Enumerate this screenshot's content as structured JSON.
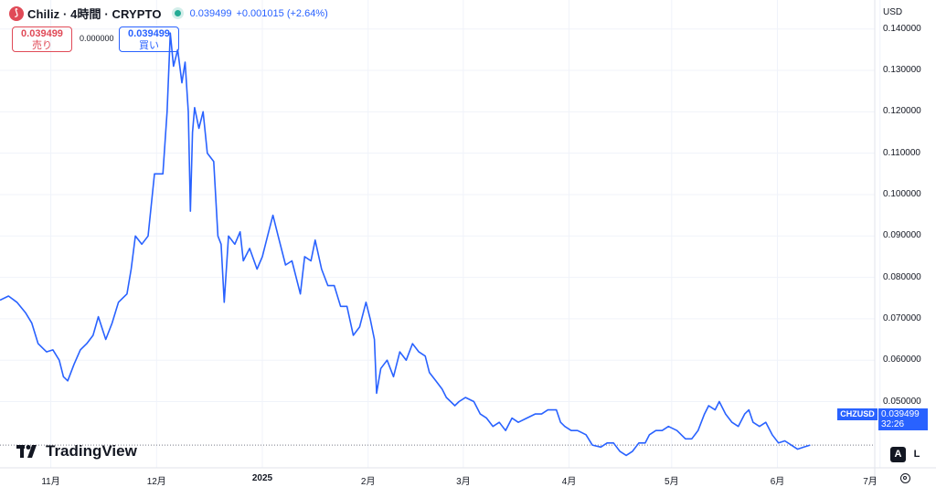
{
  "header": {
    "logo_glyph": "⟆",
    "title": "Chiliz · 4時間 · CRYPTO",
    "price": "0.039499",
    "change": "+0.001015 (+2.64%)"
  },
  "trade": {
    "sell_value": "0.039499",
    "sell_label": "売り",
    "spread": "0.000000",
    "buy_value": "0.039499",
    "buy_label": "買い"
  },
  "axis": {
    "currency": "USD",
    "auto_label": "A",
    "log_label": "L"
  },
  "price_tag": {
    "symbol": "CHZUSD",
    "value": "0.039499",
    "countdown": "32:26"
  },
  "brand": {
    "name": "TradingView"
  },
  "colors": {
    "line": "#2962ff",
    "sell": "#e04a57",
    "buy": "#2962ff",
    "grid": "#f0f3fa"
  },
  "chart_data": {
    "type": "line",
    "symbol": "CHZUSD",
    "title": "Chiliz · 4時間 · CRYPTO",
    "ylim": [
      0.034,
      0.147
    ],
    "xlim": [
      0,
      8.27
    ],
    "y_ticks": [
      0.14,
      0.13,
      0.12,
      0.11,
      0.1,
      0.09,
      0.08,
      0.07,
      0.06,
      0.05
    ],
    "y_tick_labels": [
      "0.140000",
      "0.130000",
      "0.120000",
      "0.110000",
      "0.100000",
      "0.090000",
      "0.080000",
      "0.070000",
      "0.060000",
      "0.050000"
    ],
    "x_ticks": [
      {
        "x": 0.48,
        "label": "11月",
        "bold": false
      },
      {
        "x": 1.48,
        "label": "12月",
        "bold": false
      },
      {
        "x": 2.48,
        "label": "2025",
        "bold": true
      },
      {
        "x": 3.48,
        "label": "2月",
        "bold": false
      },
      {
        "x": 4.38,
        "label": "3月",
        "bold": false
      },
      {
        "x": 5.38,
        "label": "4月",
        "bold": false
      },
      {
        "x": 6.35,
        "label": "5月",
        "bold": false
      },
      {
        "x": 7.35,
        "label": "6月",
        "bold": false
      },
      {
        "x": 8.32,
        "label": "7月",
        "bold": false
      }
    ],
    "grid": true,
    "last_price": 0.039499,
    "series": [
      {
        "name": "CHZUSD",
        "points": [
          [
            0.0,
            0.0745
          ],
          [
            0.08,
            0.0755
          ],
          [
            0.16,
            0.074
          ],
          [
            0.24,
            0.0715
          ],
          [
            0.3,
            0.069
          ],
          [
            0.36,
            0.064
          ],
          [
            0.44,
            0.062
          ],
          [
            0.5,
            0.0625
          ],
          [
            0.56,
            0.06
          ],
          [
            0.6,
            0.056
          ],
          [
            0.64,
            0.055
          ],
          [
            0.7,
            0.059
          ],
          [
            0.76,
            0.0625
          ],
          [
            0.82,
            0.064
          ],
          [
            0.88,
            0.066
          ],
          [
            0.93,
            0.0705
          ],
          [
            1.0,
            0.065
          ],
          [
            1.06,
            0.069
          ],
          [
            1.12,
            0.074
          ],
          [
            1.2,
            0.076
          ],
          [
            1.24,
            0.082
          ],
          [
            1.28,
            0.09
          ],
          [
            1.34,
            0.088
          ],
          [
            1.4,
            0.09
          ],
          [
            1.46,
            0.105
          ],
          [
            1.54,
            0.105
          ],
          [
            1.58,
            0.12
          ],
          [
            1.61,
            0.139
          ],
          [
            1.64,
            0.131
          ],
          [
            1.68,
            0.135
          ],
          [
            1.72,
            0.127
          ],
          [
            1.75,
            0.132
          ],
          [
            1.78,
            0.12
          ],
          [
            1.8,
            0.096
          ],
          [
            1.82,
            0.115
          ],
          [
            1.84,
            0.121
          ],
          [
            1.88,
            0.116
          ],
          [
            1.92,
            0.12
          ],
          [
            1.96,
            0.11
          ],
          [
            2.02,
            0.108
          ],
          [
            2.06,
            0.09
          ],
          [
            2.09,
            0.088
          ],
          [
            2.12,
            0.074
          ],
          [
            2.16,
            0.09
          ],
          [
            2.22,
            0.088
          ],
          [
            2.27,
            0.091
          ],
          [
            2.3,
            0.084
          ],
          [
            2.36,
            0.087
          ],
          [
            2.43,
            0.082
          ],
          [
            2.48,
            0.085
          ],
          [
            2.54,
            0.091
          ],
          [
            2.58,
            0.095
          ],
          [
            2.63,
            0.09
          ],
          [
            2.7,
            0.083
          ],
          [
            2.76,
            0.084
          ],
          [
            2.84,
            0.076
          ],
          [
            2.88,
            0.085
          ],
          [
            2.94,
            0.084
          ],
          [
            2.98,
            0.089
          ],
          [
            3.04,
            0.082
          ],
          [
            3.1,
            0.078
          ],
          [
            3.16,
            0.078
          ],
          [
            3.22,
            0.073
          ],
          [
            3.28,
            0.073
          ],
          [
            3.34,
            0.066
          ],
          [
            3.4,
            0.068
          ],
          [
            3.46,
            0.074
          ],
          [
            3.5,
            0.07
          ],
          [
            3.54,
            0.065
          ],
          [
            3.56,
            0.052
          ],
          [
            3.6,
            0.058
          ],
          [
            3.66,
            0.06
          ],
          [
            3.72,
            0.056
          ],
          [
            3.78,
            0.062
          ],
          [
            3.84,
            0.06
          ],
          [
            3.9,
            0.064
          ],
          [
            3.96,
            0.062
          ],
          [
            4.02,
            0.061
          ],
          [
            4.06,
            0.057
          ],
          [
            4.12,
            0.055
          ],
          [
            4.18,
            0.053
          ],
          [
            4.22,
            0.051
          ],
          [
            4.26,
            0.05
          ],
          [
            4.3,
            0.049
          ],
          [
            4.34,
            0.05
          ],
          [
            4.4,
            0.051
          ],
          [
            4.48,
            0.05
          ],
          [
            4.54,
            0.047
          ],
          [
            4.6,
            0.046
          ],
          [
            4.66,
            0.044
          ],
          [
            4.72,
            0.045
          ],
          [
            4.78,
            0.043
          ],
          [
            4.84,
            0.046
          ],
          [
            4.9,
            0.045
          ],
          [
            4.98,
            0.046
          ],
          [
            5.06,
            0.047
          ],
          [
            5.12,
            0.047
          ],
          [
            5.18,
            0.048
          ],
          [
            5.26,
            0.048
          ],
          [
            5.3,
            0.045
          ],
          [
            5.34,
            0.044
          ],
          [
            5.4,
            0.043
          ],
          [
            5.46,
            0.043
          ],
          [
            5.54,
            0.042
          ],
          [
            5.6,
            0.0395
          ],
          [
            5.68,
            0.039
          ],
          [
            5.74,
            0.04
          ],
          [
            5.8,
            0.04
          ],
          [
            5.86,
            0.038
          ],
          [
            5.92,
            0.037
          ],
          [
            5.98,
            0.038
          ],
          [
            6.04,
            0.04
          ],
          [
            6.1,
            0.04
          ],
          [
            6.14,
            0.042
          ],
          [
            6.2,
            0.043
          ],
          [
            6.26,
            0.043
          ],
          [
            6.32,
            0.044
          ],
          [
            6.4,
            0.043
          ],
          [
            6.48,
            0.041
          ],
          [
            6.54,
            0.041
          ],
          [
            6.6,
            0.043
          ],
          [
            6.66,
            0.047
          ],
          [
            6.7,
            0.049
          ],
          [
            6.76,
            0.048
          ],
          [
            6.8,
            0.05
          ],
          [
            6.86,
            0.047
          ],
          [
            6.92,
            0.045
          ],
          [
            6.98,
            0.044
          ],
          [
            7.04,
            0.047
          ],
          [
            7.08,
            0.048
          ],
          [
            7.12,
            0.045
          ],
          [
            7.18,
            0.044
          ],
          [
            7.24,
            0.045
          ],
          [
            7.3,
            0.042
          ],
          [
            7.36,
            0.04
          ],
          [
            7.42,
            0.0405
          ],
          [
            7.48,
            0.0395
          ],
          [
            7.54,
            0.0385
          ],
          [
            7.6,
            0.039
          ],
          [
            7.66,
            0.0395
          ]
        ]
      }
    ]
  }
}
